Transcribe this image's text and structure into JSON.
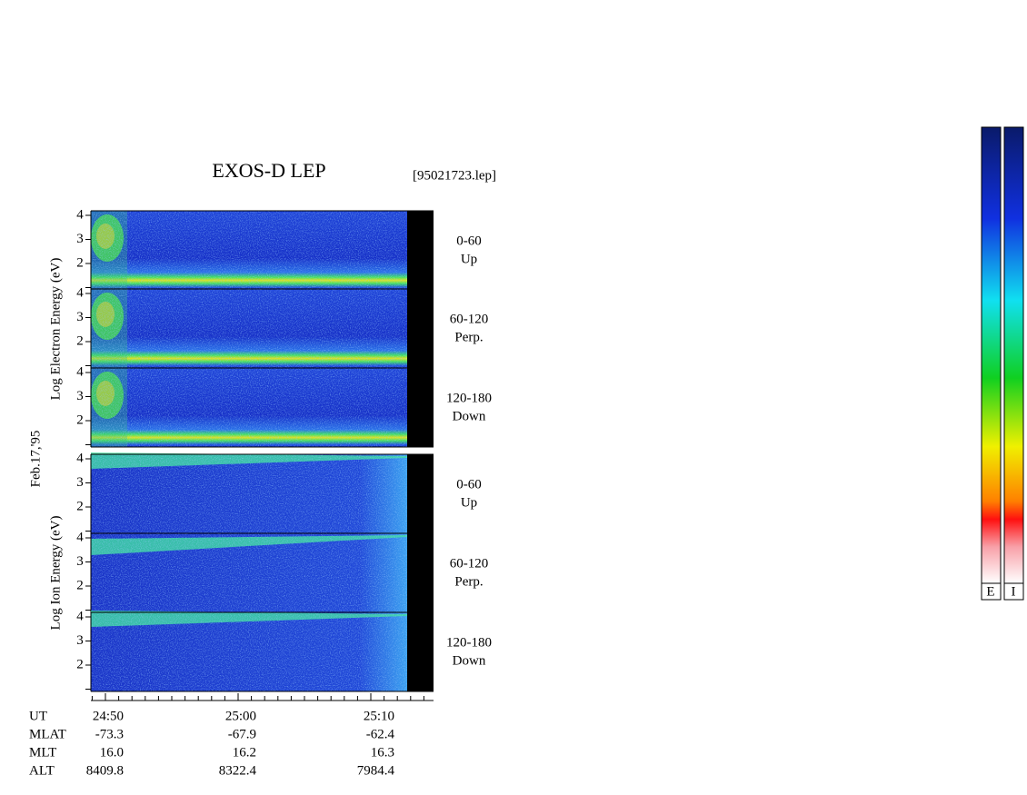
{
  "title": "EXOS-D LEP",
  "file": "[95021723.lep]",
  "date": "Feb.17,'95",
  "groups": [
    {
      "axis_label": "Log  Electron  Energy  (eV)",
      "panels": [
        {
          "range": "0-60",
          "direction": "Up"
        },
        {
          "range": "60-120",
          "direction": "Perp."
        },
        {
          "range": "120-180",
          "direction": "Down"
        }
      ]
    },
    {
      "axis_label": "Log  Ion  Energy  (eV)",
      "panels": [
        {
          "range": "0-60",
          "direction": "Up"
        },
        {
          "range": "60-120",
          "direction": "Perp."
        },
        {
          "range": "120-180",
          "direction": "Down"
        }
      ]
    }
  ],
  "yticks": [
    "2",
    "3",
    "4"
  ],
  "ephemeris": [
    {
      "name": "UT",
      "values": [
        "24:50",
        "25:00",
        "25:10"
      ]
    },
    {
      "name": "MLAT",
      "values": [
        "-73.3",
        "-67.9",
        "-62.4"
      ]
    },
    {
      "name": "MLT",
      "values": [
        "16.0",
        "16.2",
        "16.3"
      ]
    },
    {
      "name": "ALT",
      "values": [
        "8409.8",
        "8322.4",
        "7984.4"
      ]
    }
  ],
  "colorbar_labels": [
    "E",
    "I"
  ]
}
